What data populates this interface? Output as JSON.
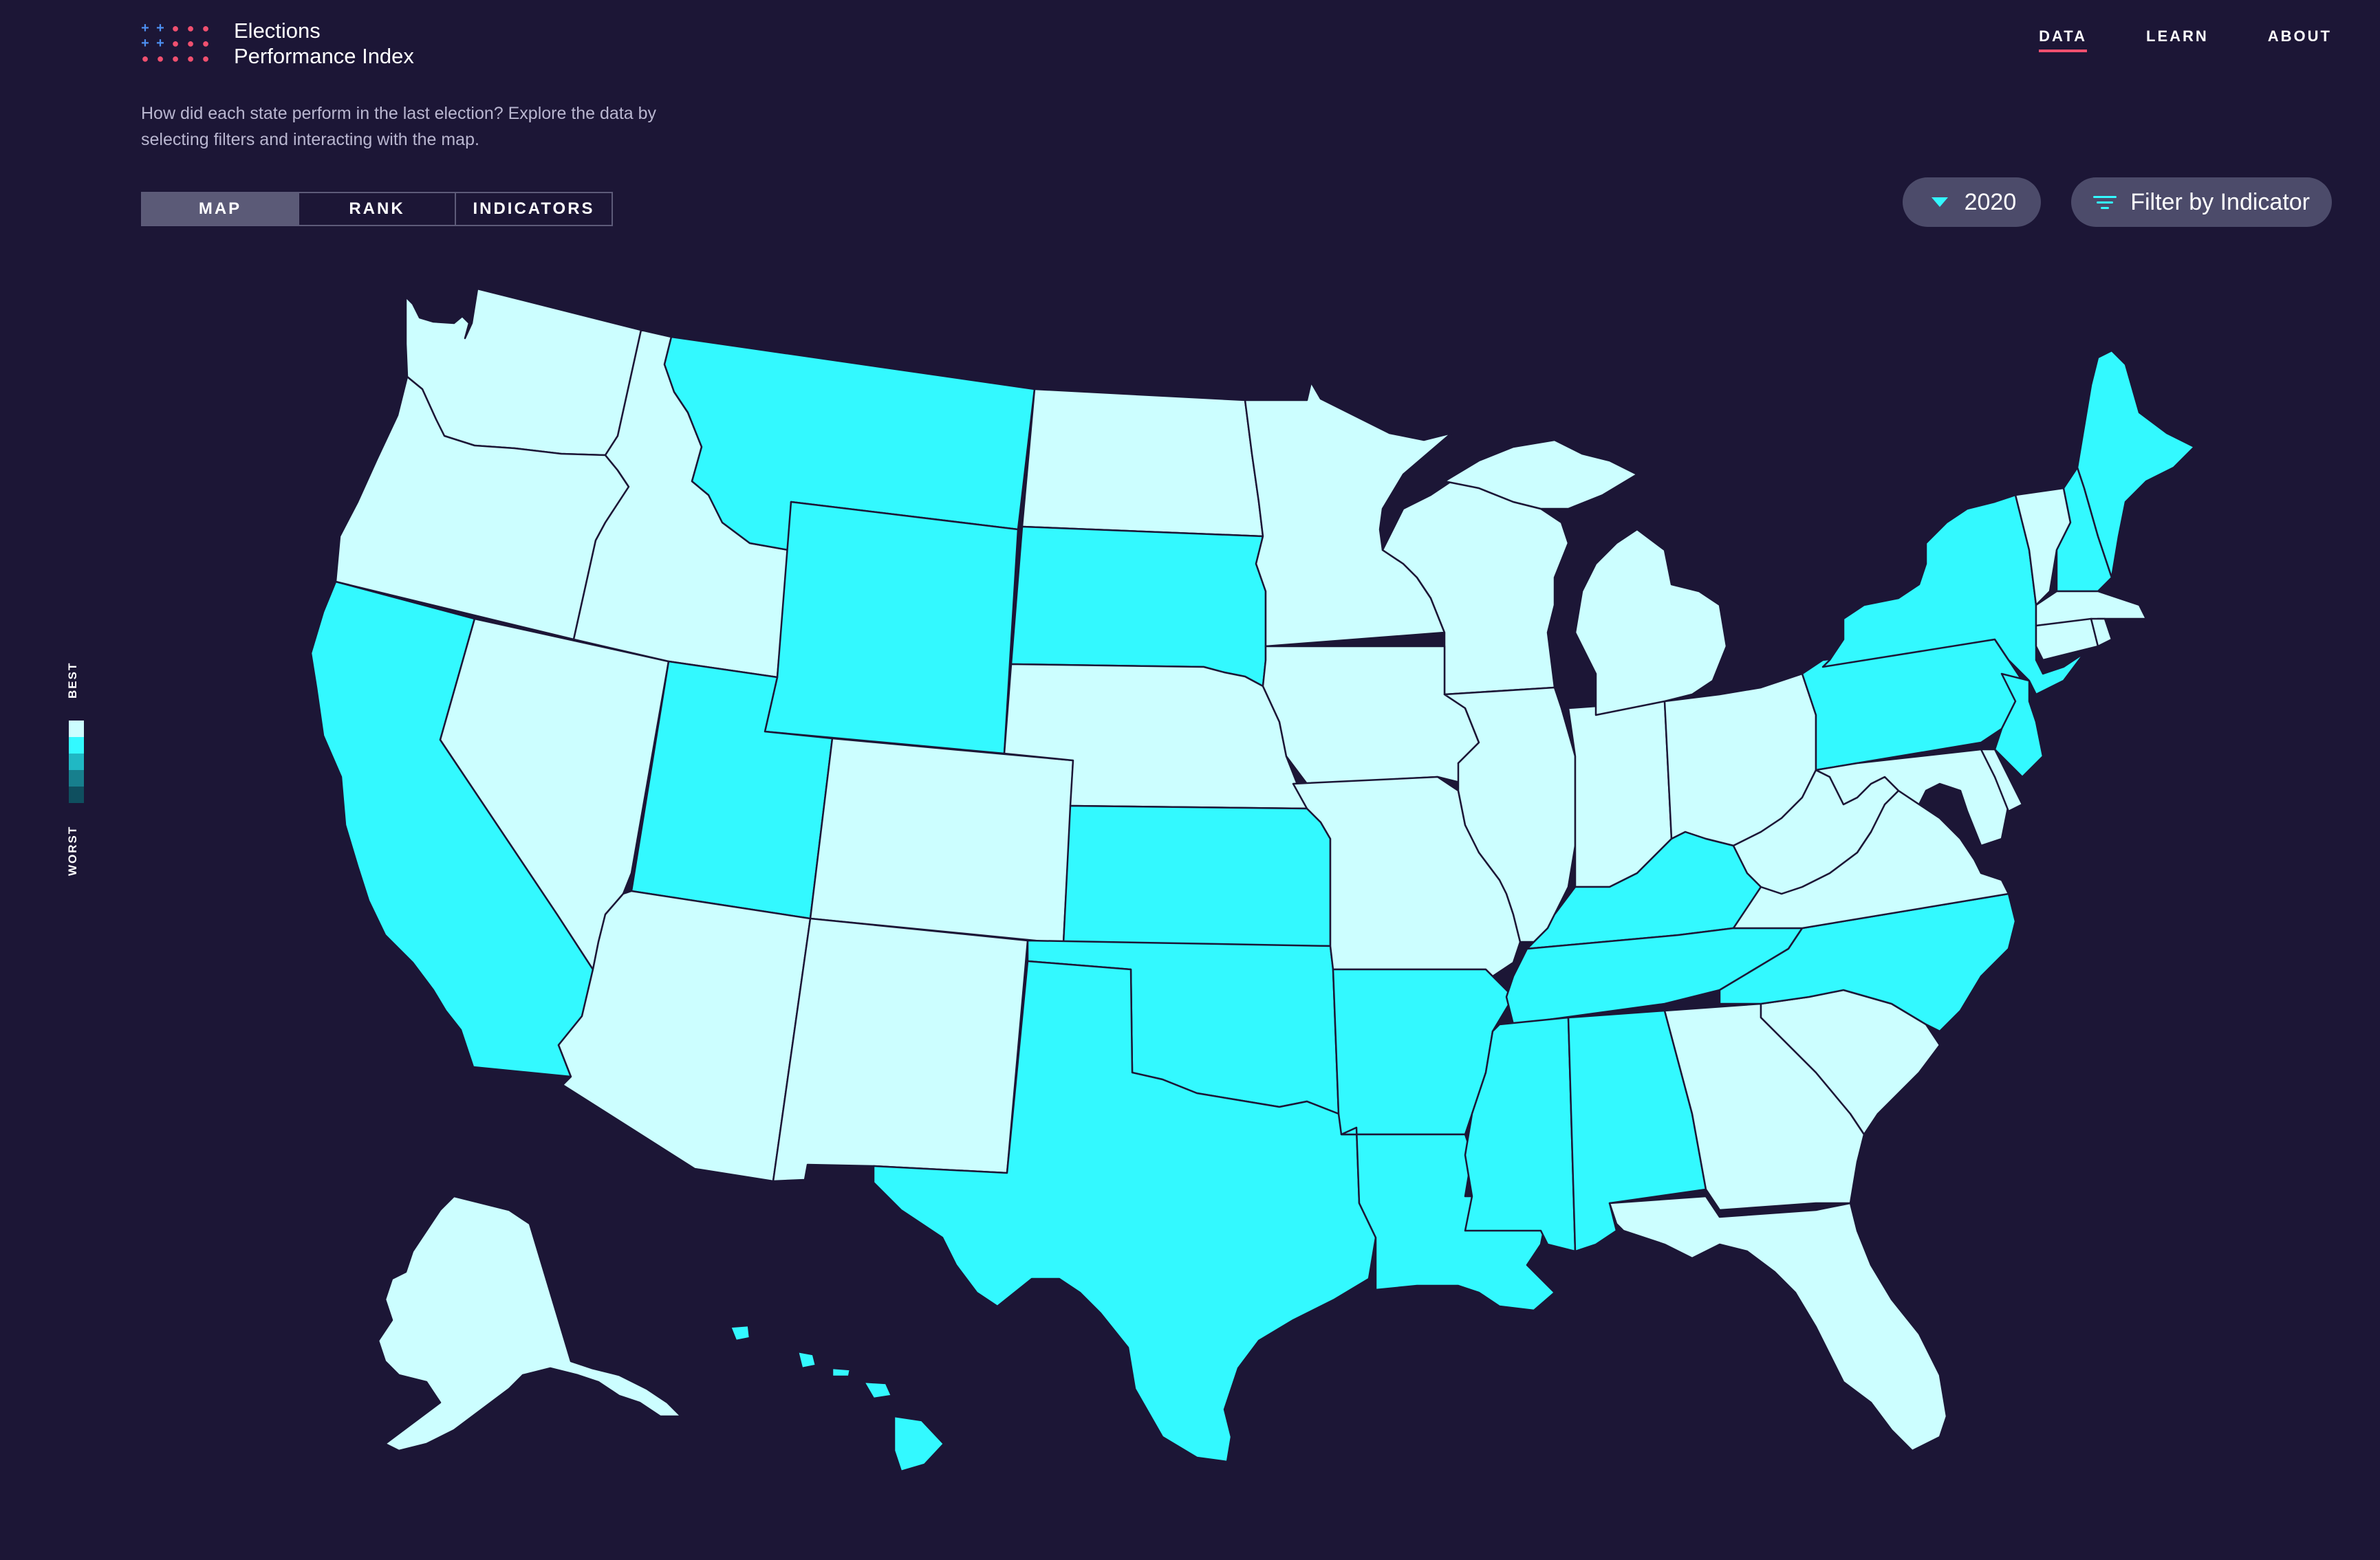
{
  "brand": {
    "line1": "Elections",
    "line2": "Performance Index"
  },
  "nav": [
    {
      "label": "DATA",
      "active": true
    },
    {
      "label": "LEARN",
      "active": false
    },
    {
      "label": "ABOUT",
      "active": false
    }
  ],
  "intro": "How did each state perform in the last election? Explore the data by selecting filters and interacting with the map.",
  "tabs": [
    {
      "label": "MAP",
      "active": true
    },
    {
      "label": "RANK",
      "active": false
    },
    {
      "label": "INDICATORS",
      "active": false
    }
  ],
  "year_select": {
    "value": "2020"
  },
  "filter_button": {
    "label": "Filter by Indicator"
  },
  "legend": {
    "best": "BEST",
    "worst": "WORST",
    "colors": [
      "#ccfeff",
      "#33f9ff",
      "#20b8c4",
      "#177f8d",
      "#0f4f5f"
    ]
  },
  "colors": {
    "background": "#1c1636",
    "accent": "#33f9ff",
    "light": "#ccfeff",
    "nav_underline": "#f0506f",
    "border": "#1c1636"
  },
  "states": {
    "light": [
      "WA",
      "OR",
      "ID",
      "NV",
      "AZ",
      "CO",
      "NM",
      "ND",
      "NE",
      "MN",
      "WI",
      "IA",
      "MO",
      "IL",
      "MI",
      "IN",
      "OH",
      "WV",
      "VA",
      "MD",
      "DE",
      "CT",
      "RI",
      "MA",
      "VT",
      "SC",
      "GA",
      "FL",
      "AK"
    ],
    "accent": [
      "CA",
      "UT",
      "MT",
      "WY",
      "SD",
      "KS",
      "OK",
      "TX",
      "AR",
      "LA",
      "MS",
      "AL",
      "TN",
      "KY",
      "NC",
      "PA",
      "NY",
      "NJ",
      "NH",
      "ME",
      "HI"
    ]
  }
}
